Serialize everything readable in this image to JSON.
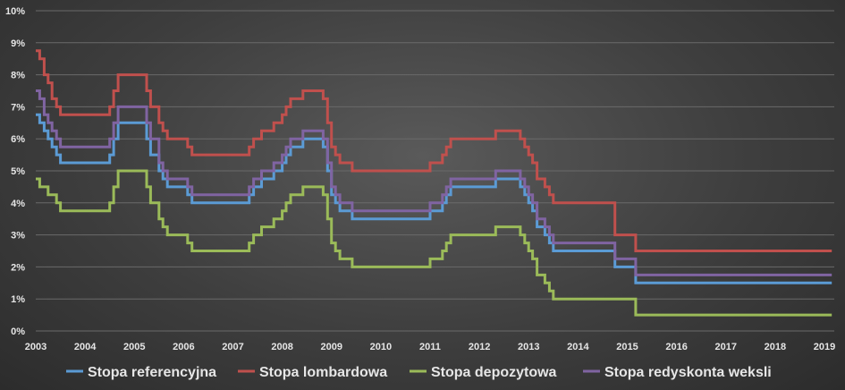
{
  "chart_data": {
    "type": "line",
    "step": true,
    "ylim": [
      0,
      10
    ],
    "xlim": [
      2003,
      2019.2
    ],
    "y_ticks": [
      "0%",
      "1%",
      "2%",
      "3%",
      "4%",
      "5%",
      "6%",
      "7%",
      "8%",
      "9%",
      "10%"
    ],
    "x_ticks": [
      "2003",
      "2004",
      "2005",
      "2006",
      "2007",
      "2008",
      "2009",
      "2010",
      "2011",
      "2012",
      "2013",
      "2014",
      "2015",
      "2016",
      "2017",
      "2018",
      "2019"
    ],
    "grid": true,
    "legend_position": "bottom",
    "series": [
      {
        "name": "Stopa referencyjna",
        "color": "#5b9bd5",
        "points": [
          [
            2003.0,
            6.75
          ],
          [
            2003.08,
            6.5
          ],
          [
            2003.17,
            6.25
          ],
          [
            2003.25,
            6.0
          ],
          [
            2003.33,
            5.75
          ],
          [
            2003.42,
            5.5
          ],
          [
            2003.5,
            5.25
          ],
          [
            2004.5,
            5.5
          ],
          [
            2004.58,
            6.0
          ],
          [
            2004.67,
            6.5
          ],
          [
            2005.25,
            6.0
          ],
          [
            2005.33,
            5.5
          ],
          [
            2005.5,
            5.0
          ],
          [
            2005.58,
            4.75
          ],
          [
            2005.67,
            4.5
          ],
          [
            2006.08,
            4.25
          ],
          [
            2006.17,
            4.0
          ],
          [
            2007.33,
            4.25
          ],
          [
            2007.42,
            4.5
          ],
          [
            2007.58,
            4.75
          ],
          [
            2007.83,
            5.0
          ],
          [
            2008.0,
            5.25
          ],
          [
            2008.08,
            5.5
          ],
          [
            2008.17,
            5.75
          ],
          [
            2008.42,
            6.0
          ],
          [
            2008.83,
            5.75
          ],
          [
            2008.92,
            5.0
          ],
          [
            2009.0,
            4.25
          ],
          [
            2009.08,
            4.0
          ],
          [
            2009.17,
            3.75
          ],
          [
            2009.42,
            3.5
          ],
          [
            2010.0,
            3.5
          ],
          [
            2011.0,
            3.75
          ],
          [
            2011.25,
            4.0
          ],
          [
            2011.33,
            4.25
          ],
          [
            2011.42,
            4.5
          ],
          [
            2012.33,
            4.75
          ],
          [
            2012.83,
            4.5
          ],
          [
            2012.92,
            4.25
          ],
          [
            2013.0,
            4.0
          ],
          [
            2013.08,
            3.75
          ],
          [
            2013.17,
            3.25
          ],
          [
            2013.33,
            3.0
          ],
          [
            2013.42,
            2.75
          ],
          [
            2013.5,
            2.5
          ],
          [
            2014.75,
            2.0
          ],
          [
            2015.17,
            1.5
          ],
          [
            2019.15,
            1.5
          ]
        ]
      },
      {
        "name": "Stopa lombardowa",
        "color": "#c0504d",
        "points": [
          [
            2003.0,
            8.75
          ],
          [
            2003.08,
            8.5
          ],
          [
            2003.17,
            8.0
          ],
          [
            2003.25,
            7.75
          ],
          [
            2003.33,
            7.25
          ],
          [
            2003.42,
            7.0
          ],
          [
            2003.5,
            6.75
          ],
          [
            2004.5,
            7.0
          ],
          [
            2004.58,
            7.5
          ],
          [
            2004.67,
            8.0
          ],
          [
            2005.25,
            7.5
          ],
          [
            2005.33,
            7.0
          ],
          [
            2005.5,
            6.5
          ],
          [
            2005.58,
            6.25
          ],
          [
            2005.67,
            6.0
          ],
          [
            2006.08,
            5.75
          ],
          [
            2006.17,
            5.5
          ],
          [
            2007.33,
            5.75
          ],
          [
            2007.42,
            6.0
          ],
          [
            2007.58,
            6.25
          ],
          [
            2007.83,
            6.5
          ],
          [
            2008.0,
            6.75
          ],
          [
            2008.08,
            7.0
          ],
          [
            2008.17,
            7.25
          ],
          [
            2008.42,
            7.5
          ],
          [
            2008.83,
            7.25
          ],
          [
            2008.92,
            6.5
          ],
          [
            2009.0,
            5.75
          ],
          [
            2009.08,
            5.5
          ],
          [
            2009.17,
            5.25
          ],
          [
            2009.42,
            5.0
          ],
          [
            2010.0,
            5.0
          ],
          [
            2011.0,
            5.25
          ],
          [
            2011.25,
            5.5
          ],
          [
            2011.33,
            5.75
          ],
          [
            2011.42,
            6.0
          ],
          [
            2012.33,
            6.25
          ],
          [
            2012.83,
            6.0
          ],
          [
            2012.92,
            5.75
          ],
          [
            2013.0,
            5.5
          ],
          [
            2013.08,
            5.25
          ],
          [
            2013.17,
            4.75
          ],
          [
            2013.33,
            4.5
          ],
          [
            2013.42,
            4.25
          ],
          [
            2013.5,
            4.0
          ],
          [
            2014.75,
            3.0
          ],
          [
            2015.17,
            2.5
          ],
          [
            2019.15,
            2.5
          ]
        ]
      },
      {
        "name": "Stopa depozytowa",
        "color": "#9bbb59",
        "points": [
          [
            2003.0,
            4.75
          ],
          [
            2003.08,
            4.5
          ],
          [
            2003.25,
            4.25
          ],
          [
            2003.42,
            4.0
          ],
          [
            2003.5,
            3.75
          ],
          [
            2004.5,
            4.0
          ],
          [
            2004.58,
            4.5
          ],
          [
            2004.67,
            5.0
          ],
          [
            2005.25,
            4.5
          ],
          [
            2005.33,
            4.0
          ],
          [
            2005.5,
            3.5
          ],
          [
            2005.58,
            3.25
          ],
          [
            2005.67,
            3.0
          ],
          [
            2006.08,
            2.75
          ],
          [
            2006.17,
            2.5
          ],
          [
            2007.33,
            2.75
          ],
          [
            2007.42,
            3.0
          ],
          [
            2007.58,
            3.25
          ],
          [
            2007.83,
            3.5
          ],
          [
            2008.0,
            3.75
          ],
          [
            2008.08,
            4.0
          ],
          [
            2008.17,
            4.25
          ],
          [
            2008.42,
            4.5
          ],
          [
            2008.83,
            4.25
          ],
          [
            2008.92,
            3.5
          ],
          [
            2009.0,
            2.75
          ],
          [
            2009.08,
            2.5
          ],
          [
            2009.17,
            2.25
          ],
          [
            2009.42,
            2.0
          ],
          [
            2010.0,
            2.0
          ],
          [
            2011.0,
            2.25
          ],
          [
            2011.25,
            2.5
          ],
          [
            2011.33,
            2.75
          ],
          [
            2011.42,
            3.0
          ],
          [
            2012.33,
            3.25
          ],
          [
            2012.83,
            3.0
          ],
          [
            2012.92,
            2.75
          ],
          [
            2013.0,
            2.5
          ],
          [
            2013.08,
            2.25
          ],
          [
            2013.17,
            1.75
          ],
          [
            2013.33,
            1.5
          ],
          [
            2013.42,
            1.25
          ],
          [
            2013.5,
            1.0
          ],
          [
            2014.75,
            1.0
          ],
          [
            2015.17,
            0.5
          ],
          [
            2019.15,
            0.5
          ]
        ]
      },
      {
        "name": "Stopa redyskonta weksli",
        "color": "#8064a2",
        "points": [
          [
            2003.0,
            7.5
          ],
          [
            2003.08,
            7.25
          ],
          [
            2003.17,
            6.75
          ],
          [
            2003.25,
            6.5
          ],
          [
            2003.33,
            6.25
          ],
          [
            2003.42,
            6.0
          ],
          [
            2003.5,
            5.75
          ],
          [
            2004.5,
            6.0
          ],
          [
            2004.58,
            6.5
          ],
          [
            2004.67,
            7.0
          ],
          [
            2005.25,
            6.5
          ],
          [
            2005.33,
            6.0
          ],
          [
            2005.5,
            5.25
          ],
          [
            2005.58,
            5.0
          ],
          [
            2005.67,
            4.75
          ],
          [
            2006.08,
            4.5
          ],
          [
            2006.17,
            4.25
          ],
          [
            2007.33,
            4.5
          ],
          [
            2007.42,
            4.75
          ],
          [
            2007.58,
            5.0
          ],
          [
            2007.83,
            5.25
          ],
          [
            2008.0,
            5.5
          ],
          [
            2008.08,
            5.75
          ],
          [
            2008.17,
            6.0
          ],
          [
            2008.42,
            6.25
          ],
          [
            2008.83,
            6.0
          ],
          [
            2008.92,
            5.25
          ],
          [
            2009.0,
            4.5
          ],
          [
            2009.08,
            4.25
          ],
          [
            2009.17,
            4.0
          ],
          [
            2009.42,
            3.75
          ],
          [
            2010.0,
            3.75
          ],
          [
            2011.0,
            4.0
          ],
          [
            2011.25,
            4.25
          ],
          [
            2011.33,
            4.5
          ],
          [
            2011.42,
            4.75
          ],
          [
            2012.33,
            5.0
          ],
          [
            2012.83,
            4.75
          ],
          [
            2012.92,
            4.5
          ],
          [
            2013.0,
            4.25
          ],
          [
            2013.08,
            4.0
          ],
          [
            2013.17,
            3.5
          ],
          [
            2013.33,
            3.25
          ],
          [
            2013.42,
            3.0
          ],
          [
            2013.5,
            2.75
          ],
          [
            2014.75,
            2.25
          ],
          [
            2015.17,
            1.75
          ],
          [
            2019.15,
            1.75
          ]
        ]
      }
    ]
  }
}
